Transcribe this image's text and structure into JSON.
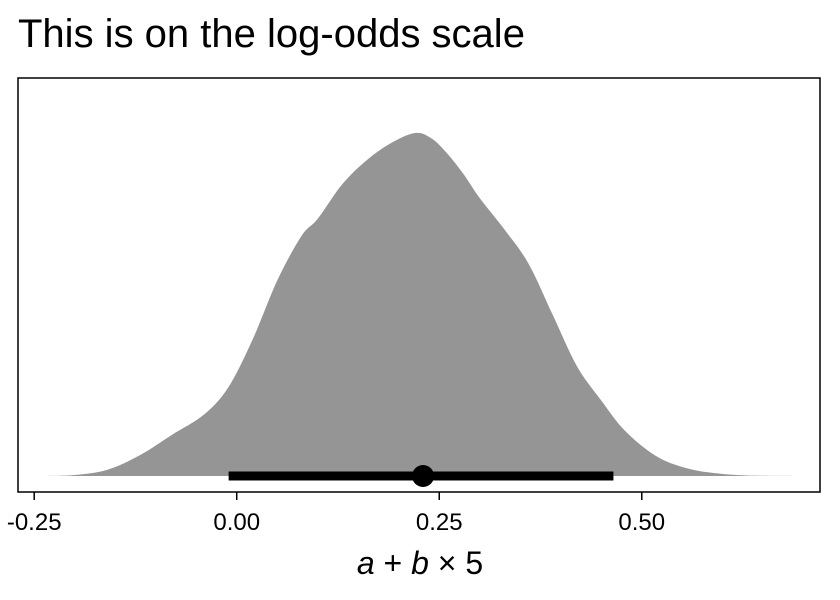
{
  "title": "This is on the log-odds scale",
  "chart_data": {
    "type": "area",
    "subtype": "density-halfeye",
    "title": "This is on the log-odds scale",
    "xlabel_parts": {
      "a": "a",
      "plus": " + ",
      "b": "b",
      "times": " × ",
      "five": "5"
    },
    "xlim": [
      -0.27,
      0.72
    ],
    "x_ticks": [
      -0.25,
      0.0,
      0.25,
      0.5
    ],
    "x_tick_labels": [
      "-0.25",
      "0.00",
      "0.25",
      "0.50"
    ],
    "density": {
      "x": [
        -0.24,
        -0.2,
        -0.16,
        -0.12,
        -0.08,
        -0.04,
        -0.01,
        0.02,
        0.05,
        0.08,
        0.1,
        0.13,
        0.16,
        0.19,
        0.22,
        0.24,
        0.26,
        0.28,
        0.3,
        0.33,
        0.36,
        0.39,
        0.42,
        0.45,
        0.48,
        0.52,
        0.56,
        0.6,
        0.64,
        0.69
      ],
      "y": [
        0.0,
        0.003,
        0.018,
        0.06,
        0.12,
        0.18,
        0.26,
        0.4,
        0.57,
        0.7,
        0.75,
        0.85,
        0.92,
        0.97,
        1.0,
        0.985,
        0.94,
        0.88,
        0.81,
        0.72,
        0.62,
        0.47,
        0.32,
        0.22,
        0.13,
        0.055,
        0.02,
        0.006,
        0.001,
        0.0
      ],
      "fill": "#959595"
    },
    "interval": {
      "lower": -0.01,
      "upper": 0.465,
      "color": "#000000"
    },
    "point": {
      "value": 0.23,
      "color": "#000000"
    },
    "grid": false
  }
}
